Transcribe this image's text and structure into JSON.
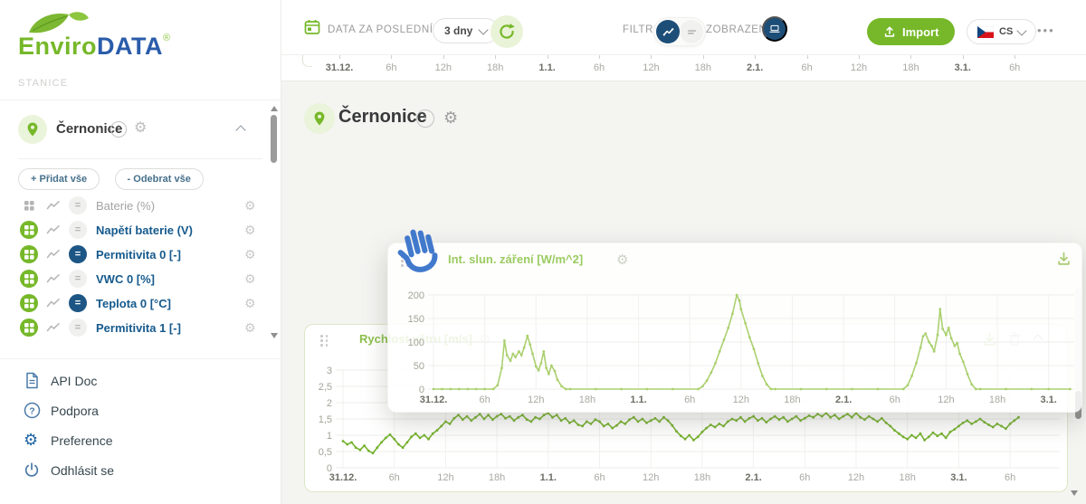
{
  "brand": {
    "logo_green": "Enviro",
    "logo_blue": "DATA",
    "registered": "®"
  },
  "icons": {
    "gear": "⚙",
    "equals": "=",
    "info": "i",
    "question": "?"
  },
  "colors": {
    "brand_green": "#76b829",
    "brand_blue": "#2a5caa",
    "navy": "#1d4e78",
    "sensor_blue": "#165a8d",
    "solar_line": "#abd06f",
    "wind_line": "#76b22e"
  },
  "sidebar": {
    "section_label": "STANICE",
    "station": {
      "name": "Černonice"
    },
    "add_all_prefix": "+",
    "add_all": "Přidat vše",
    "remove_all_prefix": "-",
    "remove_all": "Odebrat vše",
    "sensors": [
      {
        "label": "Baterie (%)",
        "grid_active": false,
        "eq_active": false,
        "dimmed": true
      },
      {
        "label": "Napětí baterie (V)",
        "grid_active": true,
        "eq_active": false,
        "dimmed": false
      },
      {
        "label": "Permitivita 0 [-]",
        "grid_active": true,
        "eq_active": true,
        "dimmed": false
      },
      {
        "label": "VWC 0 [%]",
        "grid_active": true,
        "eq_active": false,
        "dimmed": false
      },
      {
        "label": "Teplota 0 [°C]",
        "grid_active": true,
        "eq_active": true,
        "dimmed": false
      },
      {
        "label": "Permitivita 1 [-]",
        "grid_active": true,
        "eq_active": false,
        "dimmed": false
      }
    ],
    "menu": [
      {
        "label": "API Doc",
        "icon": "document-icon"
      },
      {
        "label": "Podpora",
        "icon": "help-icon"
      },
      {
        "label": "Preference",
        "icon": "gear-icon"
      },
      {
        "label": "Odhlásit se",
        "icon": "power-icon"
      }
    ]
  },
  "topbar": {
    "period_label": "DATA ZA POSLEDNÍ",
    "period_value": "3 dny",
    "filter_label": "FILTR",
    "view_label": "ZOBRAZENÍ",
    "import_label": "Import",
    "language": "CS",
    "more": "•••"
  },
  "main": {
    "timeline_ticks": [
      "31.12.",
      "6h",
      "12h",
      "18h",
      "1.1.",
      "6h",
      "12h",
      "18h",
      "2.1.",
      "6h",
      "12h",
      "18h",
      "3.1.",
      "6h"
    ],
    "station_title": "Černonice"
  },
  "chart_data": [
    {
      "id": "solar",
      "type": "line",
      "title": "Int. slun. záření [W/m^2]",
      "color": "#abd06f",
      "ylim": [
        0,
        200
      ],
      "yticks": [
        {
          "v": 0,
          "label": "0"
        },
        {
          "v": 50,
          "label": "50"
        },
        {
          "v": 100,
          "label": "100"
        },
        {
          "v": 150,
          "label": "150"
        },
        {
          "v": 200,
          "label": "200"
        }
      ],
      "xticks": [
        "31.12.",
        "6h",
        "12h",
        "18h",
        "1.1.",
        "6h",
        "12h",
        "18h",
        "2.1.",
        "6h",
        "12h",
        "18h",
        "3.1."
      ],
      "x_unit": "hours since 31.12. 00:00",
      "x": [
        0,
        1,
        2,
        3,
        4,
        5,
        6,
        7,
        7.5,
        8,
        8.3,
        8.6,
        9,
        9.3,
        9.6,
        10,
        10.3,
        10.6,
        11,
        11.3,
        11.6,
        12,
        12.3,
        12.6,
        12.9,
        13.2,
        13.5,
        13.8,
        14.2,
        14.5,
        15,
        15.5,
        16,
        19,
        22,
        25,
        28,
        31,
        31.5,
        32,
        32.5,
        33,
        33.5,
        34,
        34.5,
        35,
        35.5,
        35.8,
        36,
        36.5,
        37,
        37.5,
        38,
        38.5,
        39,
        39.5,
        40,
        43,
        46,
        49,
        52,
        55,
        55.5,
        56,
        56.5,
        57,
        57.3,
        57.6,
        58,
        58.3,
        58.6,
        59,
        59.3,
        59.6,
        60,
        60.3,
        60.6,
        61,
        61.3,
        61.6,
        62,
        62.5,
        63,
        63.5,
        64,
        67,
        70,
        72,
        74.5
      ],
      "y": [
        0,
        0,
        0,
        0,
        0,
        0,
        0,
        0,
        8,
        45,
        103,
        72,
        60,
        75,
        68,
        80,
        72,
        88,
        113,
        95,
        75,
        48,
        40,
        55,
        80,
        45,
        32,
        50,
        38,
        20,
        6,
        0,
        0,
        0,
        0,
        0,
        0,
        0,
        6,
        18,
        35,
        55,
        80,
        105,
        130,
        160,
        200,
        188,
        170,
        140,
        110,
        85,
        55,
        28,
        10,
        0,
        0,
        0,
        0,
        0,
        0,
        0,
        8,
        28,
        55,
        88,
        112,
        118,
        100,
        92,
        80,
        115,
        170,
        128,
        115,
        130,
        108,
        92,
        98,
        75,
        58,
        32,
        10,
        0,
        0,
        0,
        0,
        0,
        0
      ]
    },
    {
      "id": "wind",
      "type": "line",
      "title": "Rychlost větru [m/s]",
      "color": "#76b22e",
      "ylim": [
        0,
        3
      ],
      "yticks": [
        {
          "v": 0,
          "label": "0"
        },
        {
          "v": 0.5,
          "label": "0,5"
        },
        {
          "v": 1,
          "label": "1"
        },
        {
          "v": 1.5,
          "label": "1,5"
        },
        {
          "v": 2,
          "label": "2"
        },
        {
          "v": 2.5,
          "label": "2,5"
        },
        {
          "v": 3,
          "label": "3"
        }
      ],
      "xticks": [
        "31.12.",
        "6h",
        "12h",
        "18h",
        "1.1.",
        "6h",
        "12h",
        "18h",
        "2.1.",
        "6h",
        "12h",
        "18h",
        "3.1.",
        "6h"
      ],
      "x_unit": "hours since 31.12. 00:00",
      "x_start": 0,
      "x_step": 0.5,
      "values": [
        0.82,
        0.72,
        0.78,
        0.62,
        0.55,
        0.68,
        0.52,
        0.45,
        0.62,
        0.78,
        0.92,
        1.02,
        0.88,
        0.72,
        0.62,
        0.78,
        0.95,
        1.05,
        0.92,
        1.0,
        0.88,
        1.05,
        1.15,
        1.28,
        1.42,
        1.35,
        1.52,
        1.62,
        1.48,
        1.58,
        1.45,
        1.55,
        1.65,
        1.5,
        1.62,
        1.48,
        1.58,
        1.65,
        1.52,
        1.58,
        1.45,
        1.55,
        1.62,
        1.48,
        1.42,
        1.55,
        1.5,
        1.62,
        1.68,
        1.55,
        1.62,
        1.45,
        1.52,
        1.38,
        1.45,
        1.32,
        1.28,
        1.42,
        1.35,
        1.48,
        1.42,
        1.28,
        1.35,
        1.22,
        1.3,
        1.42,
        1.35,
        1.48,
        1.55,
        1.42,
        1.5,
        1.38,
        1.45,
        1.52,
        1.42,
        1.55,
        1.45,
        1.3,
        1.12,
        0.98,
        0.88,
        1.0,
        0.85,
        0.95,
        1.1,
        1.22,
        1.32,
        1.25,
        1.35,
        1.28,
        1.42,
        1.5,
        1.45,
        1.55,
        1.42,
        1.52,
        1.58,
        1.45,
        1.52,
        1.4,
        1.5,
        1.58,
        1.48,
        1.55,
        1.42,
        1.5,
        1.58,
        1.45,
        1.52,
        1.6,
        1.55,
        1.65,
        1.58,
        1.68,
        1.55,
        1.62,
        1.5,
        1.58,
        1.65,
        1.55,
        1.68,
        1.55,
        1.48,
        1.58,
        1.5,
        1.42,
        1.52,
        1.38,
        1.28,
        1.15,
        1.05,
        0.95,
        0.88,
        1.0,
        0.92,
        1.05,
        0.85,
        0.95,
        1.08,
        0.98,
        1.05,
        0.92,
        1.1,
        1.18,
        1.28,
        1.38,
        1.45,
        1.35,
        1.42,
        1.5,
        1.4,
        1.32,
        1.25,
        1.35,
        1.28,
        1.2,
        1.35,
        1.45,
        1.55
      ]
    }
  ]
}
